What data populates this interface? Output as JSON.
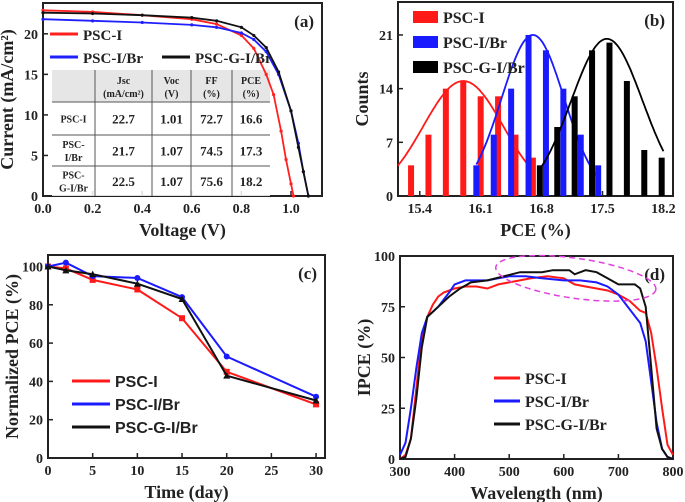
{
  "chart_data": [
    {
      "panel_label": "(a)",
      "type": "line",
      "xlabel": "Voltage (V)",
      "ylabel": "Current (mA/cm²)",
      "xlim": [
        0,
        1.125
      ],
      "ylim": [
        0,
        23.8
      ],
      "xticks": [
        "0.0",
        "0.2",
        "0.4",
        "0.6",
        "0.8",
        "1.0"
      ],
      "yticks": [
        "0",
        "5",
        "10",
        "15",
        "20"
      ],
      "legend": "top-left",
      "series": [
        {
          "name": "PSC-I",
          "color": "#ff2020",
          "x": [
            0,
            0.2,
            0.4,
            0.6,
            0.7,
            0.8,
            0.85,
            0.9,
            0.93,
            0.96,
            0.98,
            1.0,
            1.01
          ],
          "y": [
            22.9,
            22.7,
            22.3,
            21.8,
            21.2,
            19.8,
            18.2,
            15,
            12.5,
            8,
            4.5,
            1.5,
            0
          ]
        },
        {
          "name": "PSC-I/Br",
          "color": "#2020ff",
          "x": [
            0,
            0.2,
            0.4,
            0.6,
            0.7,
            0.8,
            0.85,
            0.9,
            0.95,
            1.0,
            1.03,
            1.05,
            1.07
          ],
          "y": [
            21.8,
            21.6,
            21.4,
            21.1,
            20.8,
            20.1,
            19.3,
            17.8,
            15,
            10.5,
            6.5,
            3,
            0
          ]
        },
        {
          "name": "PSC-G-I/Br",
          "color": "#111111",
          "x": [
            0,
            0.2,
            0.4,
            0.6,
            0.7,
            0.8,
            0.85,
            0.9,
            0.95,
            1.0,
            1.03,
            1.05,
            1.07
          ],
          "y": [
            22.6,
            22.5,
            22.3,
            22.0,
            21.6,
            20.8,
            19.8,
            18.3,
            15.3,
            10.5,
            6,
            3,
            0
          ]
        }
      ],
      "table": {
        "headers": [
          [
            "",
            ""
          ],
          [
            "Jsc",
            "(mA/cm²)"
          ],
          [
            "Voc",
            "(V)"
          ],
          [
            "FF",
            "(%)"
          ],
          [
            "PCE",
            "(%)"
          ]
        ],
        "rows": [
          [
            [
              "PSC-I"
            ],
            "22.7",
            "1.01",
            "72.7",
            "16.6"
          ],
          [
            [
              "PSC-",
              "I/Br"
            ],
            "21.7",
            "1.07",
            "74.5",
            "17.3"
          ],
          [
            [
              "PSC-",
              "G-I/Br"
            ],
            "22.5",
            "1.07",
            "75.6",
            "18.2"
          ]
        ]
      }
    },
    {
      "panel_label": "(b)",
      "type": "bar",
      "xlabel": "PCE (%)",
      "ylabel": "Counts",
      "xlim": [
        15.15,
        18.31
      ],
      "ylim": [
        0,
        25.3
      ],
      "xticks": [
        "15.4",
        "16.1",
        "16.8",
        "17.5",
        "18.2"
      ],
      "yticks": [
        "0",
        "7",
        "14",
        "21"
      ],
      "legend": "top-left",
      "series": [
        {
          "name": "PSC-I",
          "color": "#ff1a1a",
          "x": [
            15.3,
            15.5,
            15.7,
            15.9,
            16.1,
            16.3,
            16.5,
            16.7
          ],
          "values": [
            4,
            8,
            14,
            15,
            13,
            13,
            8,
            5
          ],
          "fit": {
            "mean": 15.9,
            "sigma": 0.46,
            "amplitude": 15,
            "range": [
              15.15,
              16.7
            ]
          }
        },
        {
          "name": "PSC-I/Br",
          "color": "#1a1aff",
          "x": [
            16.05,
            16.25,
            16.45,
            16.65,
            16.85,
            17.05,
            17.25,
            17.45
          ],
          "values": [
            4,
            8,
            14,
            21,
            19,
            14,
            8,
            4
          ],
          "fit": {
            "mean": 16.7,
            "sigma": 0.36,
            "amplitude": 21,
            "range": [
              16.05,
              17.45
            ]
          }
        },
        {
          "name": "PSC-G-I/Br",
          "color": "#000000",
          "x": [
            16.78,
            16.98,
            17.18,
            17.38,
            17.58,
            17.78,
            17.98,
            18.18
          ],
          "values": [
            4,
            9,
            13,
            19,
            20,
            15,
            6,
            5
          ],
          "fit": {
            "mean": 17.55,
            "sigma": 0.41,
            "amplitude": 20.5,
            "range": [
              16.78,
              18.2
            ]
          }
        }
      ]
    },
    {
      "panel_label": "(c)",
      "type": "line",
      "xlabel": "Time (day)",
      "ylabel": "Normalized PCE (%)",
      "xlim": [
        0,
        31
      ],
      "ylim": [
        0,
        106
      ],
      "xticks": [
        "0",
        "5",
        "10",
        "15",
        "20",
        "25",
        "30"
      ],
      "yticks": [
        "0",
        "20",
        "40",
        "60",
        "80",
        "100"
      ],
      "legend": "bottom-left",
      "series": [
        {
          "name": "PSC-I",
          "color": "#ff1a1a",
          "marker": "square",
          "x": [
            0,
            2,
            5,
            10,
            15,
            20,
            30
          ],
          "y": [
            100,
            99,
            93,
            88,
            73,
            45,
            28
          ]
        },
        {
          "name": "PSC-I/Br",
          "color": "#1a1aff",
          "marker": "circle",
          "x": [
            0,
            2,
            5,
            10,
            15,
            20,
            30
          ],
          "y": [
            100,
            102,
            95,
            94,
            84,
            53,
            32
          ]
        },
        {
          "name": "PSC-G-I/Br",
          "color": "#111111",
          "marker": "triangle",
          "x": [
            0,
            2,
            5,
            10,
            15,
            20,
            30
          ],
          "y": [
            100,
            98,
            96,
            91,
            83,
            43,
            30
          ]
        }
      ]
    },
    {
      "panel_label": "(d)",
      "type": "line",
      "xlabel": "Wavelength (nm)",
      "ylabel": "IPCE (%)",
      "xlim": [
        300,
        800
      ],
      "ylim": [
        0,
        100
      ],
      "xticks": [
        "300",
        "400",
        "500",
        "600",
        "700",
        "800"
      ],
      "yticks": [
        "0",
        "25",
        "50",
        "75",
        "100"
      ],
      "legend": "bottom-center",
      "annotation": "dashed magenta ellipse around 500–750 nm peak region",
      "series": [
        {
          "name": "PSC-I",
          "color": "#ff1a1a",
          "x": [
            300,
            310,
            320,
            330,
            340,
            350,
            360,
            370,
            380,
            400,
            420,
            440,
            460,
            480,
            500,
            540,
            570,
            600,
            620,
            640,
            660,
            680,
            700,
            720,
            740,
            750,
            760,
            770,
            780,
            790,
            800
          ],
          "y": [
            0,
            2,
            10,
            35,
            60,
            70,
            76,
            80,
            82,
            84,
            85,
            85,
            84,
            86,
            87,
            89,
            90,
            89,
            86,
            85,
            84,
            83,
            81,
            78,
            73,
            72,
            62,
            45,
            25,
            7,
            2
          ]
        },
        {
          "name": "PSC-I/Br",
          "color": "#1a1aff",
          "x": [
            300,
            310,
            320,
            330,
            340,
            350,
            370,
            390,
            400,
            420,
            440,
            460,
            480,
            500,
            530,
            560,
            600,
            630,
            660,
            680,
            700,
            720,
            740,
            750,
            760,
            770,
            780,
            790,
            800
          ],
          "y": [
            2,
            8,
            25,
            45,
            62,
            70,
            75,
            82,
            86,
            88,
            88,
            88,
            89,
            90,
            90,
            89,
            88,
            88,
            87,
            85,
            81,
            74,
            67,
            58,
            38,
            18,
            5,
            1,
            0
          ]
        },
        {
          "name": "PSC-G-I/Br",
          "color": "#111111",
          "x": [
            300,
            310,
            320,
            330,
            340,
            350,
            370,
            390,
            410,
            430,
            460,
            490,
            520,
            560,
            580,
            610,
            620,
            640,
            660,
            680,
            700,
            730,
            740,
            750,
            760,
            770,
            780,
            790,
            800
          ],
          "y": [
            0,
            1,
            10,
            30,
            55,
            70,
            75,
            80,
            84,
            87,
            88,
            90,
            92,
            92,
            93,
            93,
            91,
            93,
            92,
            89,
            86,
            86,
            84,
            75,
            45,
            15,
            5,
            1,
            0
          ]
        }
      ]
    }
  ],
  "colors": {
    "annotation": "#e040e0"
  }
}
